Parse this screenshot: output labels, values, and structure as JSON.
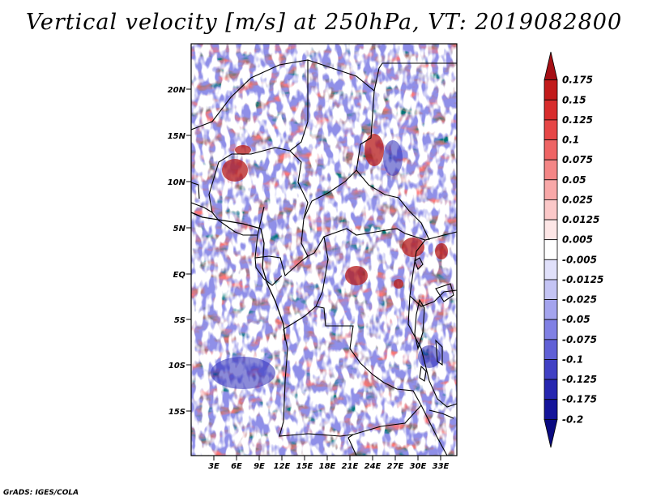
{
  "title": "Vertical velocity [m/s] at 250hPa, VT: 2019082800",
  "footer": "GrADS: IGES/COLA",
  "map": {
    "lat_labels": [
      "20N",
      "15N",
      "10N",
      "5N",
      "EQ",
      "5S",
      "10S",
      "15S"
    ],
    "lon_labels": [
      "3E",
      "6E",
      "9E",
      "12E",
      "15E",
      "18E",
      "21E",
      "24E",
      "27E",
      "30E",
      "33E"
    ]
  },
  "colorbar": {
    "levels": [
      "0.175",
      "0.15",
      "0.125",
      "0.1",
      "0.075",
      "0.05",
      "0.025",
      "0.0125",
      "0.005",
      "-0.005",
      "-0.0125",
      "-0.025",
      "-0.05",
      "-0.075",
      "-0.1",
      "-0.125",
      "-0.175",
      "-0.2"
    ],
    "colors": [
      "#a50f15",
      "#c21a1a",
      "#d82c2c",
      "#e64646",
      "#ee6464",
      "#f48686",
      "#f8a8a8",
      "#fbc8c8",
      "#fde6e6",
      "#ffffff",
      "#e0e0fa",
      "#c4c4f4",
      "#a4a4ee",
      "#8080e4",
      "#6060d6",
      "#4040c4",
      "#2626b0",
      "#14149a",
      "#0a0a80"
    ]
  }
}
